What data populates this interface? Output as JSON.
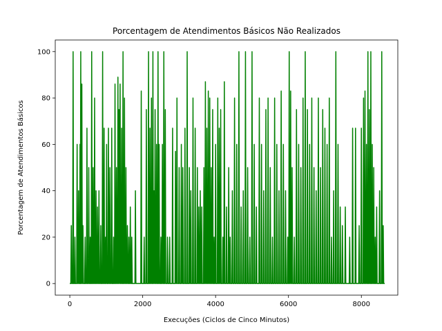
{
  "chart_data": {
    "type": "line",
    "title": "Porcentagem de Atendimentos Básicos Não Realizados",
    "xlabel": "Execuções (Ciclos de Cinco Minutos)",
    "ylabel": "Porcentagem de Atendimentos Básicos",
    "xlim": [
      -400,
      9000
    ],
    "ylim": [
      -5,
      105
    ],
    "xticks": [
      0,
      2000,
      4000,
      6000,
      8000
    ],
    "yticks": [
      0,
      20,
      40,
      60,
      80,
      100
    ],
    "grid": false,
    "legend": "none",
    "series_color": "#008000",
    "x_extent": [
      0,
      8640
    ],
    "spikes": [
      [
        40,
        25
      ],
      [
        90,
        100
      ],
      [
        140,
        20
      ],
      [
        200,
        60
      ],
      [
        240,
        40
      ],
      [
        280,
        60
      ],
      [
        300,
        100
      ],
      [
        330,
        86
      ],
      [
        360,
        25
      ],
      [
        420,
        20
      ],
      [
        470,
        67
      ],
      [
        520,
        50
      ],
      [
        560,
        20
      ],
      [
        600,
        100
      ],
      [
        640,
        50
      ],
      [
        680,
        80
      ],
      [
        720,
        40
      ],
      [
        760,
        33
      ],
      [
        800,
        40
      ],
      [
        850,
        25
      ],
      [
        900,
        100
      ],
      [
        940,
        67
      ],
      [
        980,
        20
      ],
      [
        1010,
        60
      ],
      [
        1060,
        67
      ],
      [
        1100,
        50
      ],
      [
        1150,
        67
      ],
      [
        1200,
        20
      ],
      [
        1240,
        86
      ],
      [
        1280,
        50
      ],
      [
        1320,
        89
      ],
      [
        1350,
        75
      ],
      [
        1380,
        86
      ],
      [
        1420,
        67
      ],
      [
        1460,
        100
      ],
      [
        1500,
        80
      ],
      [
        1540,
        50
      ],
      [
        1580,
        25
      ],
      [
        1620,
        20
      ],
      [
        1660,
        33
      ],
      [
        1700,
        20
      ],
      [
        1800,
        40
      ],
      [
        1960,
        83
      ],
      [
        2040,
        20
      ],
      [
        2100,
        75
      ],
      [
        2160,
        100
      ],
      [
        2200,
        67
      ],
      [
        2240,
        80
      ],
      [
        2280,
        100
      ],
      [
        2310,
        40
      ],
      [
        2340,
        75
      ],
      [
        2380,
        60
      ],
      [
        2420,
        100
      ],
      [
        2450,
        60
      ],
      [
        2500,
        20
      ],
      [
        2540,
        60
      ],
      [
        2580,
        100
      ],
      [
        2620,
        75
      ],
      [
        2680,
        20
      ],
      [
        2740,
        20
      ],
      [
        2820,
        67
      ],
      [
        2900,
        57
      ],
      [
        2940,
        80
      ],
      [
        3000,
        50
      ],
      [
        3060,
        60
      ],
      [
        3100,
        50
      ],
      [
        3160,
        67
      ],
      [
        3220,
        100
      ],
      [
        3280,
        50
      ],
      [
        3320,
        40
      ],
      [
        3380,
        80
      ],
      [
        3440,
        67
      ],
      [
        3500,
        50
      ],
      [
        3540,
        33
      ],
      [
        3580,
        40
      ],
      [
        3620,
        33
      ],
      [
        3680,
        50
      ],
      [
        3720,
        87
      ],
      [
        3760,
        67
      ],
      [
        3800,
        83
      ],
      [
        3840,
        80
      ],
      [
        3880,
        50
      ],
      [
        3920,
        75
      ],
      [
        3960,
        20
      ],
      [
        4000,
        60
      ],
      [
        4060,
        80
      ],
      [
        4100,
        67
      ],
      [
        4140,
        75
      ],
      [
        4200,
        20
      ],
      [
        4240,
        87
      ],
      [
        4300,
        33
      ],
      [
        4360,
        50
      ],
      [
        4400,
        20
      ],
      [
        4460,
        40
      ],
      [
        4520,
        80
      ],
      [
        4580,
        60
      ],
      [
        4640,
        100
      ],
      [
        4700,
        33
      ],
      [
        4760,
        40
      ],
      [
        4820,
        100
      ],
      [
        4880,
        50
      ],
      [
        4940,
        20
      ],
      [
        5000,
        100
      ],
      [
        5060,
        60
      ],
      [
        5120,
        33
      ],
      [
        5200,
        80
      ],
      [
        5260,
        60
      ],
      [
        5320,
        40
      ],
      [
        5380,
        75
      ],
      [
        5440,
        80
      ],
      [
        5500,
        50
      ],
      [
        5560,
        20
      ],
      [
        5620,
        80
      ],
      [
        5680,
        60
      ],
      [
        5740,
        40
      ],
      [
        5800,
        83
      ],
      [
        5860,
        60
      ],
      [
        5920,
        40
      ],
      [
        5980,
        20
      ],
      [
        6020,
        100
      ],
      [
        6060,
        83
      ],
      [
        6100,
        50
      ],
      [
        6160,
        20
      ],
      [
        6220,
        75
      ],
      [
        6280,
        60
      ],
      [
        6340,
        50
      ],
      [
        6400,
        80
      ],
      [
        6460,
        100
      ],
      [
        6520,
        75
      ],
      [
        6580,
        60
      ],
      [
        6640,
        80
      ],
      [
        6700,
        50
      ],
      [
        6760,
        40
      ],
      [
        6820,
        80
      ],
      [
        6880,
        50
      ],
      [
        6940,
        75
      ],
      [
        7000,
        67
      ],
      [
        7060,
        60
      ],
      [
        7120,
        80
      ],
      [
        7180,
        20
      ],
      [
        7240,
        40
      ],
      [
        7300,
        100
      ],
      [
        7360,
        60
      ],
      [
        7420,
        33
      ],
      [
        7480,
        25
      ],
      [
        7560,
        33
      ],
      [
        7680,
        20
      ],
      [
        7760,
        67
      ],
      [
        7840,
        67
      ],
      [
        7940,
        25
      ],
      [
        8000,
        67
      ],
      [
        8060,
        80
      ],
      [
        8100,
        83
      ],
      [
        8140,
        60
      ],
      [
        8180,
        100
      ],
      [
        8220,
        75
      ],
      [
        8260,
        100
      ],
      [
        8300,
        60
      ],
      [
        8340,
        50
      ],
      [
        8380,
        20
      ],
      [
        8420,
        33
      ],
      [
        8500,
        40
      ],
      [
        8560,
        100
      ],
      [
        8600,
        25
      ]
    ]
  }
}
